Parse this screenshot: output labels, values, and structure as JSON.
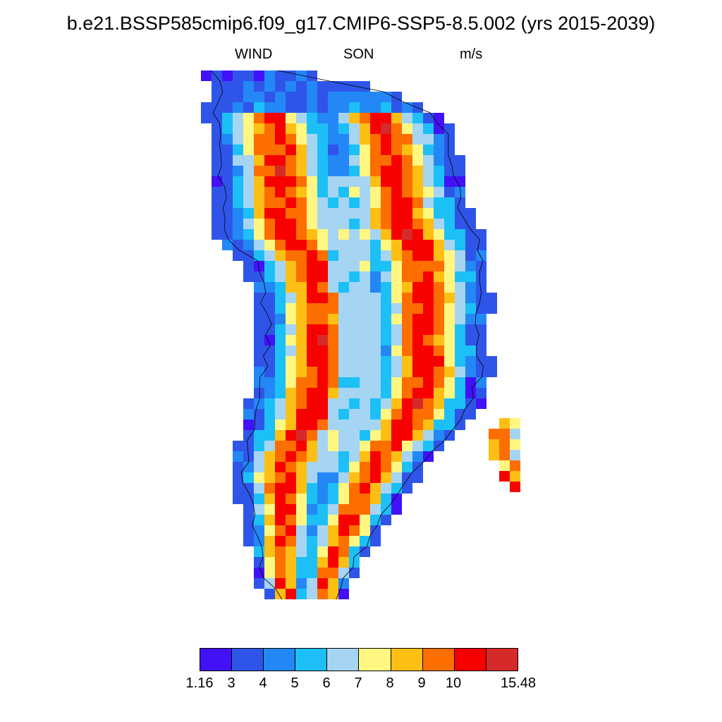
{
  "title": "b.e21.BSSP585cmip6.f09_g17.CMIP6-SSP5-8.5.002 (yrs 2015-2039)",
  "left_label": "WIND",
  "center_label": "SON",
  "right_label": "m/s",
  "colorbar": {
    "colors": [
      "#4211F7",
      "#2F55E8",
      "#2388F5",
      "#1CC0F7",
      "#A5D5F2",
      "#FFF782",
      "#FDBF14",
      "#FD6E00",
      "#F70000",
      "#D62A2A"
    ],
    "labels": [
      "1.16",
      "3",
      "4",
      "5",
      "6",
      "7",
      "8",
      "9",
      "10",
      "15.48"
    ]
  }
}
